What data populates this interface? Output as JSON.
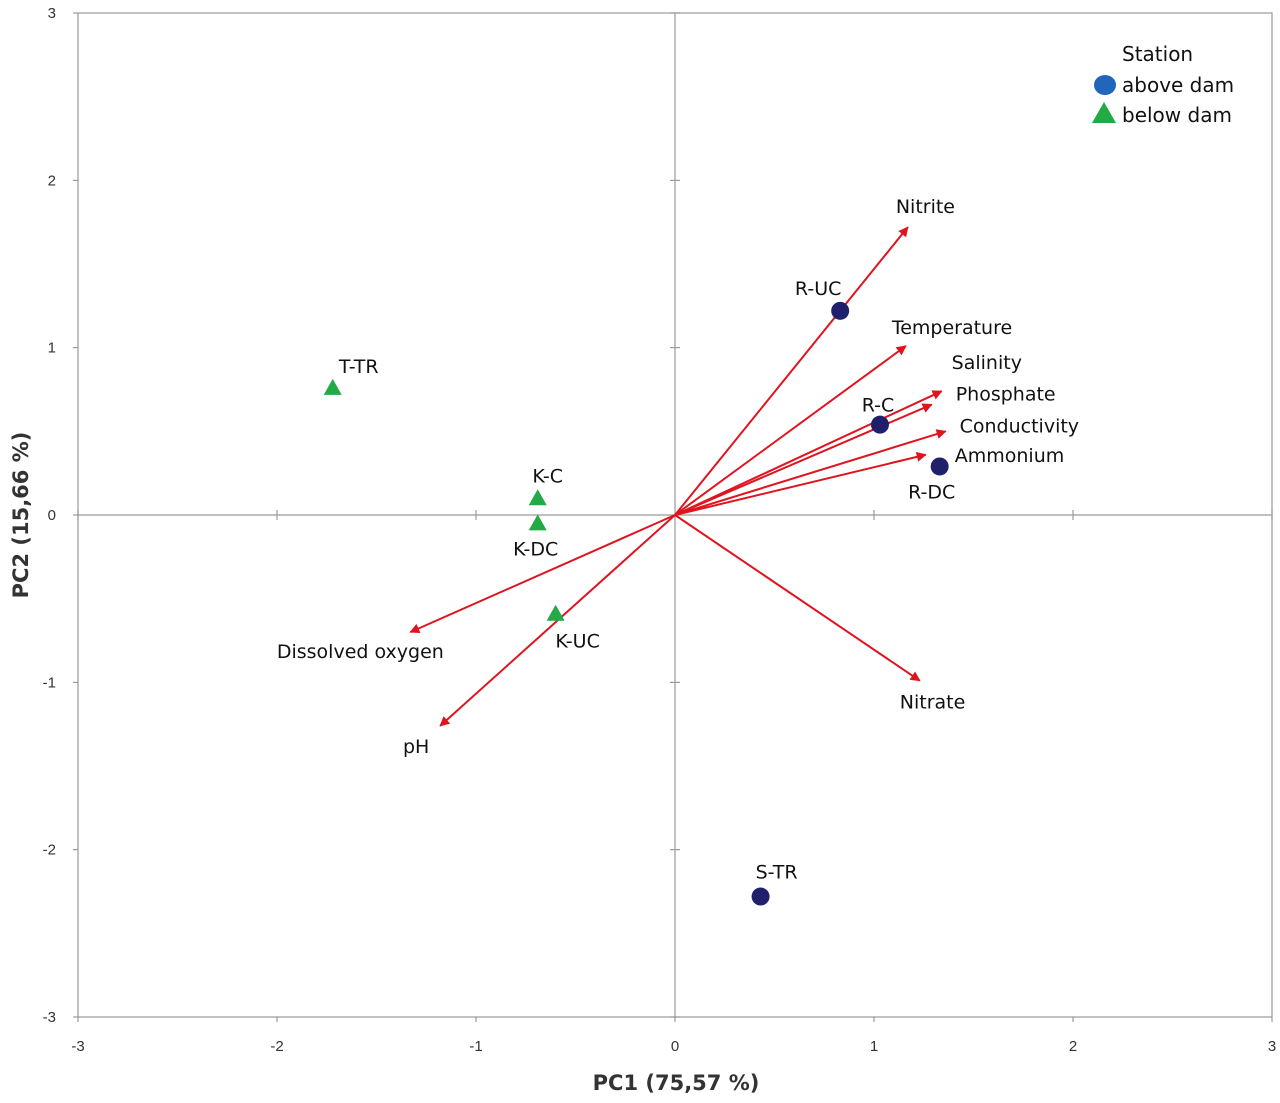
{
  "chart_data": {
    "type": "scatter",
    "subtype": "pca-biplot",
    "xlabel": "PC1 (75,57 %)",
    "ylabel": "PC2 (15,66 %)",
    "xlim": [
      -3,
      3
    ],
    "ylim": [
      -3,
      3
    ],
    "xticks": [
      "-3",
      "-2",
      "-1",
      "0",
      "1",
      "2",
      "3"
    ],
    "yticks": [
      "-3",
      "-2",
      "-1",
      "0",
      "1",
      "2",
      "3"
    ],
    "grid": false,
    "legend": {
      "title": "Station",
      "placement": "top-right",
      "entries": [
        {
          "label": "above dam",
          "marker": "circle",
          "color": "#2266bb"
        },
        {
          "label": "below dam",
          "marker": "triangle",
          "color": "#22aa44"
        }
      ]
    },
    "colors": {
      "above_points": "#1f1f6b",
      "below_points": "#22aa44",
      "loadings": "#e0141e",
      "axes": "#999999"
    },
    "points": [
      {
        "label": "R-UC",
        "x": 0.83,
        "y": 1.22,
        "group": "above dam"
      },
      {
        "label": "R-C",
        "x": 1.03,
        "y": 0.54,
        "group": "above dam"
      },
      {
        "label": "R-DC",
        "x": 1.33,
        "y": 0.29,
        "group": "above dam"
      },
      {
        "label": "S-TR",
        "x": 0.43,
        "y": -2.28,
        "group": "above dam"
      },
      {
        "label": "T-TR",
        "x": -1.72,
        "y": 0.76,
        "group": "below dam"
      },
      {
        "label": "K-C",
        "x": -0.69,
        "y": 0.1,
        "group": "below dam"
      },
      {
        "label": "K-DC",
        "x": -0.69,
        "y": -0.05,
        "group": "below dam"
      },
      {
        "label": "K-UC",
        "x": -0.6,
        "y": -0.59,
        "group": "below dam"
      }
    ],
    "loadings": [
      {
        "label": "Nitrite",
        "x": 1.17,
        "y": 1.72
      },
      {
        "label": "Temperature",
        "x": 1.16,
        "y": 1.01
      },
      {
        "label": "Salinity",
        "x": 1.34,
        "y": 0.74
      },
      {
        "label": "Phosphate",
        "x": 1.29,
        "y": 0.66
      },
      {
        "label": "Conductivity",
        "x": 1.36,
        "y": 0.5
      },
      {
        "label": "Ammonium",
        "x": 1.26,
        "y": 0.36
      },
      {
        "label": "Nitrate",
        "x": 1.23,
        "y": -0.99
      },
      {
        "label": "Dissolved oxygen",
        "x": -1.33,
        "y": -0.7
      },
      {
        "label": "pH",
        "x": -1.18,
        "y": -1.26
      }
    ]
  }
}
